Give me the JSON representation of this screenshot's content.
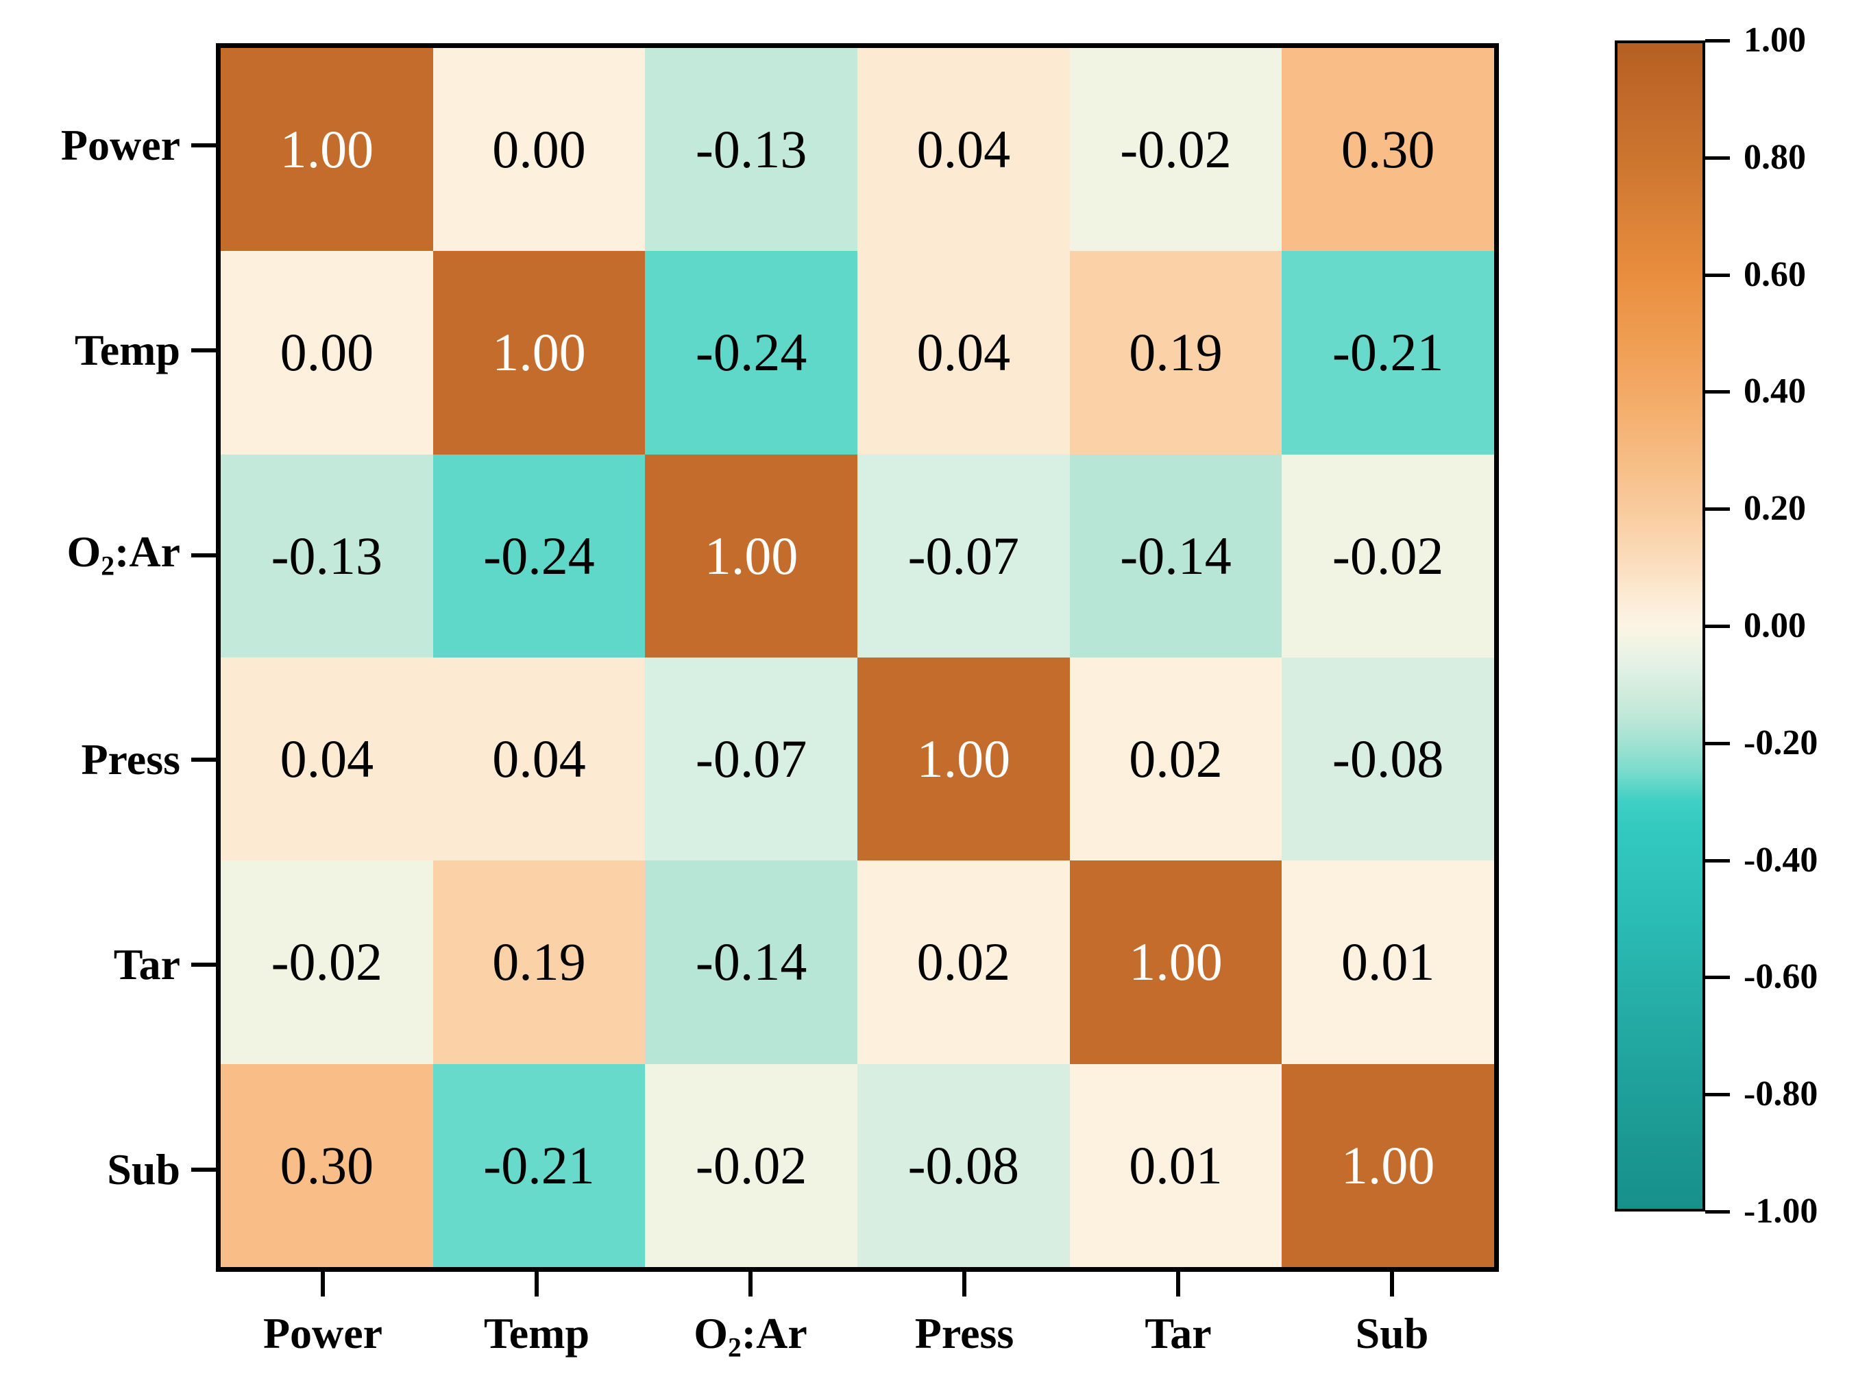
{
  "figure": {
    "background": "#FFFFFF",
    "frame_color": "#000000"
  },
  "chart_data": {
    "type": "heatmap",
    "title": "",
    "xlabel": "",
    "ylabel": "",
    "categories": [
      "Power",
      "Temp",
      "O2:Ar",
      "Press",
      "Tar",
      "Sub"
    ],
    "row_label_segments": [
      [
        {
          "t": "Power"
        }
      ],
      [
        {
          "t": "Temp"
        }
      ],
      [
        {
          "t": "O"
        },
        {
          "t": "2",
          "sub": true
        },
        {
          "t": ":Ar"
        }
      ],
      [
        {
          "t": "Press"
        }
      ],
      [
        {
          "t": "Tar"
        }
      ],
      [
        {
          "t": "Sub"
        }
      ]
    ],
    "col_label_segments": [
      [
        {
          "t": "Power"
        }
      ],
      [
        {
          "t": "Temp"
        }
      ],
      [
        {
          "t": "O"
        },
        {
          "t": "2",
          "sub": true
        },
        {
          "t": ":Ar"
        }
      ],
      [
        {
          "t": "Press"
        }
      ],
      [
        {
          "t": "Tar"
        }
      ],
      [
        {
          "t": "Sub"
        }
      ]
    ],
    "matrix": [
      [
        1.0,
        0.0,
        -0.13,
        0.04,
        -0.02,
        0.3
      ],
      [
        0.0,
        1.0,
        -0.24,
        0.04,
        0.19,
        -0.21
      ],
      [
        -0.13,
        -0.24,
        1.0,
        -0.07,
        -0.14,
        -0.02
      ],
      [
        0.04,
        0.04,
        -0.07,
        1.0,
        0.02,
        -0.08
      ],
      [
        -0.02,
        0.19,
        -0.14,
        0.02,
        1.0,
        0.01
      ],
      [
        0.3,
        -0.21,
        -0.02,
        -0.08,
        0.01,
        1.0
      ]
    ],
    "value_decimals": 2,
    "cell_text_color": "#000000",
    "diagonal_text_color": "#FFFFFF",
    "cell_colors": [
      [
        "#C46C2C",
        "#FDF1DE",
        "#C2E9DA",
        "#FCEAD3",
        "#F1F4E3",
        "#F9BE87"
      ],
      [
        "#FDF1DE",
        "#C46C2C",
        "#5FD8C9",
        "#FCEAD3",
        "#FBD2A7",
        "#68DACB"
      ],
      [
        "#C2E9DA",
        "#5FD8C9",
        "#C46C2C",
        "#D8EFE3",
        "#B7E6D7",
        "#F1F4E3"
      ],
      [
        "#FCEAD3",
        "#FCEAD3",
        "#D8EFE3",
        "#C46C2C",
        "#FDF0DC",
        "#D7EEE1"
      ],
      [
        "#F1F4E3",
        "#FBD2A7",
        "#B7E6D7",
        "#FDF0DC",
        "#C46C2C",
        "#FDF2E0"
      ],
      [
        "#F9BE87",
        "#68DACB",
        "#F1F4E3",
        "#D7EEE1",
        "#FDF2E0",
        "#C46C2C"
      ]
    ],
    "grid": false,
    "legend_position": "right",
    "colorbar": {
      "min": -1.0,
      "max": 1.0,
      "tick_values": [
        1.0,
        0.8,
        0.6,
        0.4,
        0.2,
        0.0,
        -0.2,
        -0.4,
        -0.6,
        -0.8,
        -1.0
      ],
      "tick_labels": [
        "1.00",
        "0.80",
        "0.60",
        "0.40",
        "0.20",
        "0.00",
        "-0.20",
        "-0.40",
        "-0.60",
        "-0.80",
        "-1.00"
      ],
      "gradient_stops": [
        {
          "v": 1.0,
          "c": "#B55F22"
        },
        {
          "v": 0.9,
          "c": "#C26A2A"
        },
        {
          "v": 0.8,
          "c": "#CC7530"
        },
        {
          "v": 0.7,
          "c": "#DA8238"
        },
        {
          "v": 0.6,
          "c": "#E98E3E"
        },
        {
          "v": 0.5,
          "c": "#EF9C51"
        },
        {
          "v": 0.4,
          "c": "#F3AA66"
        },
        {
          "v": 0.3,
          "c": "#F6BA80"
        },
        {
          "v": 0.2,
          "c": "#F9CB9D"
        },
        {
          "v": 0.1,
          "c": "#FBDFC0"
        },
        {
          "v": 0.05,
          "c": "#FCEBD5"
        },
        {
          "v": 0.0,
          "c": "#FCF4E5"
        },
        {
          "v": -0.03,
          "c": "#F1F4E4"
        },
        {
          "v": -0.08,
          "c": "#DFF0E5"
        },
        {
          "v": -0.1,
          "c": "#D6EDDF"
        },
        {
          "v": -0.15,
          "c": "#C2E8D9"
        },
        {
          "v": -0.2,
          "c": "#A2E2D1"
        },
        {
          "v": -0.25,
          "c": "#79DCCD"
        },
        {
          "v": -0.3,
          "c": "#40CFC4"
        },
        {
          "v": -0.35,
          "c": "#32C9C0"
        },
        {
          "v": -0.5,
          "c": "#2BBCB5"
        },
        {
          "v": -0.7,
          "c": "#23A8A2"
        },
        {
          "v": -0.9,
          "c": "#1B9791"
        },
        {
          "v": -1.0,
          "c": "#17908A"
        }
      ]
    }
  }
}
